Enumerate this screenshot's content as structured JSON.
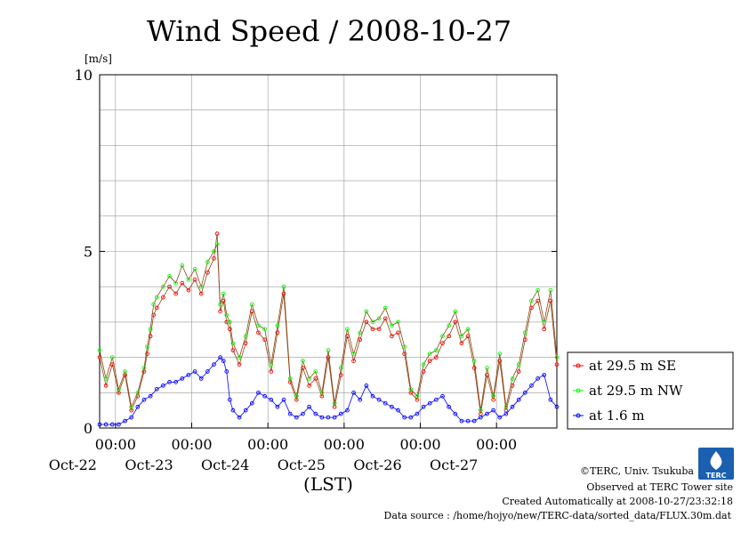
{
  "title": "Wind Speed / 2008-10-27",
  "y_unit": "[m/s]",
  "x_label": "(LST)",
  "credits": {
    "copyright": "©TERC, Univ. Tsukuba",
    "observed": "Observed at TERC Tower site",
    "created": "Created Automatically at 2008-10-27/23:32:18",
    "source": "Data source : /home/hojyo/new/TERC-data/sorted_data/FLUX.30m.dat"
  },
  "logo_text": "TERC",
  "colors": {
    "se": "#ff0000",
    "nw": "#00ff00",
    "low": "#0000ff",
    "line": "#8b4513",
    "grid": "#999999"
  },
  "chart_data": {
    "type": "line",
    "title": "Wind Speed / 2008-10-27",
    "ylabel": "[m/s]",
    "xlabel": "(LST)",
    "ylim": [
      0,
      10
    ],
    "yticks": [
      0,
      5,
      10
    ],
    "xlim": [
      0,
      144
    ],
    "x_unit": "hours since 2008-10-21 19:00 LST",
    "xticks": [
      {
        "x": 5,
        "time": "00:00",
        "date": "Oct-22"
      },
      {
        "x": 29,
        "time": "00:00",
        "date": "Oct-23"
      },
      {
        "x": 53,
        "time": "00:00",
        "date": "Oct-24"
      },
      {
        "x": 77,
        "time": "00:00",
        "date": "Oct-25"
      },
      {
        "x": 101,
        "time": "00:00",
        "date": "Oct-26"
      },
      {
        "x": 125,
        "time": "00:00",
        "date": "Oct-27"
      }
    ],
    "grid": true,
    "legend_position": "right",
    "series": [
      {
        "name": "at 29.5 m SE",
        "color": "#ff0000",
        "x": [
          0,
          2,
          4,
          6,
          8,
          10,
          12,
          14,
          15,
          16,
          17,
          18,
          20,
          22,
          24,
          26,
          28,
          30,
          32,
          34,
          36,
          37,
          38,
          39,
          40,
          41,
          42,
          44,
          46,
          48,
          50,
          52,
          54,
          56,
          58,
          60,
          62,
          64,
          66,
          68,
          70,
          72,
          74,
          76,
          78,
          80,
          82,
          84,
          86,
          88,
          90,
          92,
          94,
          96,
          98,
          100,
          102,
          104,
          106,
          108,
          110,
          112,
          114,
          116,
          118,
          120,
          122,
          124,
          126,
          128,
          130,
          132,
          134,
          136,
          138,
          140,
          142,
          144
        ],
        "y": [
          2.0,
          1.2,
          1.8,
          1.0,
          1.5,
          0.5,
          0.9,
          1.6,
          2.1,
          2.6,
          3.2,
          3.4,
          3.7,
          4.0,
          3.8,
          4.1,
          3.9,
          4.2,
          3.8,
          4.4,
          4.8,
          5.5,
          3.3,
          3.6,
          3.0,
          2.8,
          2.2,
          1.8,
          2.4,
          3.3,
          2.7,
          2.5,
          1.6,
          2.7,
          3.8,
          1.3,
          0.8,
          1.7,
          1.2,
          1.4,
          0.9,
          2.0,
          0.6,
          1.5,
          2.6,
          1.9,
          2.5,
          3.0,
          2.8,
          2.8,
          3.1,
          2.6,
          2.7,
          2.1,
          1.0,
          0.8,
          1.6,
          1.9,
          2.0,
          2.4,
          2.6,
          3.0,
          2.4,
          2.6,
          1.7,
          0.4,
          1.5,
          0.8,
          1.9,
          0.5,
          1.2,
          1.6,
          2.5,
          3.4,
          3.6,
          2.8,
          3.6,
          1.8
        ]
      },
      {
        "name": "at 29.5 m NW",
        "color": "#00ff00",
        "x": [
          0,
          2,
          4,
          6,
          8,
          10,
          12,
          14,
          15,
          16,
          17,
          18,
          20,
          22,
          24,
          26,
          28,
          30,
          32,
          34,
          36,
          37,
          38,
          39,
          40,
          41,
          42,
          44,
          46,
          48,
          50,
          52,
          54,
          56,
          58,
          60,
          62,
          64,
          66,
          68,
          70,
          72,
          74,
          76,
          78,
          80,
          82,
          84,
          86,
          88,
          90,
          92,
          94,
          96,
          98,
          100,
          102,
          104,
          106,
          108,
          110,
          112,
          114,
          116,
          118,
          120,
          122,
          124,
          126,
          128,
          130,
          132,
          134,
          136,
          138,
          140,
          142,
          144
        ],
        "y": [
          2.2,
          1.4,
          2.0,
          1.1,
          1.6,
          0.6,
          1.0,
          1.7,
          2.3,
          2.8,
          3.5,
          3.7,
          4.0,
          4.3,
          4.1,
          4.6,
          4.2,
          4.5,
          4.0,
          4.7,
          5.0,
          5.2,
          3.5,
          3.8,
          3.2,
          3.0,
          2.4,
          2.0,
          2.6,
          3.5,
          2.9,
          2.8,
          1.8,
          2.9,
          4.0,
          1.4,
          0.9,
          1.9,
          1.4,
          1.6,
          1.0,
          2.2,
          0.7,
          1.7,
          2.8,
          2.1,
          2.7,
          3.3,
          3.0,
          3.1,
          3.4,
          2.9,
          3.0,
          2.3,
          1.1,
          0.9,
          1.8,
          2.1,
          2.2,
          2.6,
          2.9,
          3.3,
          2.6,
          2.8,
          1.9,
          0.5,
          1.7,
          0.9,
          2.1,
          0.6,
          1.4,
          1.8,
          2.7,
          3.6,
          3.9,
          3.0,
          3.9,
          2.0
        ]
      },
      {
        "name": "at 1.6 m",
        "color": "#0000ff",
        "x": [
          0,
          2,
          4,
          6,
          8,
          10,
          12,
          14,
          16,
          18,
          20,
          22,
          24,
          26,
          28,
          30,
          32,
          34,
          36,
          38,
          39,
          40,
          41,
          42,
          44,
          46,
          48,
          50,
          52,
          54,
          56,
          58,
          60,
          62,
          64,
          66,
          68,
          70,
          72,
          74,
          76,
          78,
          80,
          82,
          84,
          86,
          88,
          90,
          92,
          94,
          96,
          98,
          100,
          102,
          104,
          106,
          108,
          110,
          112,
          114,
          116,
          118,
          120,
          122,
          124,
          126,
          128,
          130,
          132,
          134,
          136,
          138,
          140,
          142,
          144
        ],
        "y": [
          0.1,
          0.1,
          0.1,
          0.1,
          0.2,
          0.3,
          0.6,
          0.8,
          0.9,
          1.1,
          1.2,
          1.3,
          1.3,
          1.4,
          1.5,
          1.6,
          1.4,
          1.6,
          1.8,
          2.0,
          1.9,
          1.6,
          0.8,
          0.5,
          0.3,
          0.5,
          0.7,
          1.0,
          0.9,
          0.8,
          0.6,
          0.8,
          0.4,
          0.3,
          0.4,
          0.6,
          0.4,
          0.3,
          0.3,
          0.3,
          0.4,
          0.5,
          1.0,
          0.8,
          1.2,
          0.9,
          0.8,
          0.7,
          0.6,
          0.5,
          0.3,
          0.3,
          0.4,
          0.6,
          0.7,
          0.8,
          0.9,
          0.6,
          0.4,
          0.2,
          0.2,
          0.2,
          0.3,
          0.4,
          0.5,
          0.3,
          0.4,
          0.6,
          0.8,
          1.0,
          1.2,
          1.4,
          1.5,
          0.8,
          0.6
        ]
      }
    ]
  }
}
